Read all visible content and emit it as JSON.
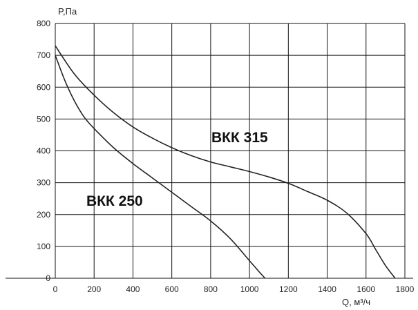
{
  "chart_data": {
    "type": "line",
    "title": "",
    "ylabel": "P,Па",
    "xlabel": "Q,  м³/ч",
    "xlim": [
      0,
      1800
    ],
    "ylim": [
      0,
      800
    ],
    "x_ticks": [
      "0",
      "200",
      "400",
      "600",
      "800",
      "1000",
      "1200",
      "1400",
      "1600",
      "1800"
    ],
    "y_ticks": [
      "0",
      "100",
      "200",
      "300",
      "400",
      "500",
      "600",
      "700",
      "800"
    ],
    "grid": true,
    "series": [
      {
        "name": "ВКК 250",
        "x": [
          0,
          50,
          100,
          150,
          200,
          300,
          400,
          500,
          600,
          700,
          800,
          900,
          1000,
          1050,
          1080
        ],
        "y": [
          700,
          620,
          555,
          505,
          470,
          410,
          360,
          315,
          270,
          225,
          180,
          125,
          55,
          20,
          0
        ]
      },
      {
        "name": "ВКК 315",
        "x": [
          0,
          100,
          200,
          300,
          400,
          500,
          600,
          700,
          800,
          900,
          1000,
          1100,
          1200,
          1300,
          1400,
          1500,
          1600,
          1650,
          1700,
          1750
        ],
        "y": [
          730,
          640,
          575,
          520,
          475,
          440,
          410,
          385,
          365,
          350,
          335,
          318,
          298,
          272,
          245,
          205,
          140,
          90,
          40,
          0
        ]
      }
    ]
  }
}
